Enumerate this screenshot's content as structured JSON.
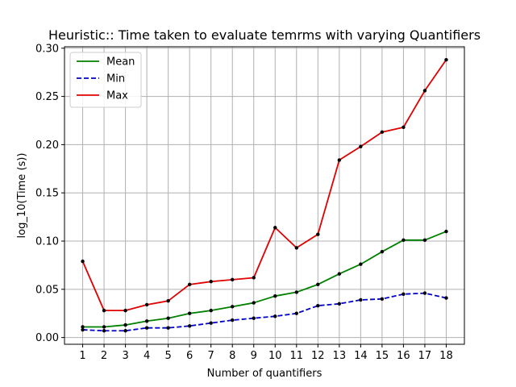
{
  "chart_data": {
    "type": "line",
    "title": "Heuristic:: Time taken to evaluate temrms with varying Quantifiers",
    "xlabel": "Number of quantifiers",
    "ylabel": "log_10(Time (s))",
    "x": [
      1,
      2,
      3,
      4,
      5,
      6,
      7,
      8,
      9,
      10,
      11,
      12,
      13,
      14,
      15,
      16,
      17,
      18
    ],
    "xlim": [
      0.15,
      18.85
    ],
    "ylim": [
      -0.007,
      0.3015
    ],
    "yticks": [
      0.0,
      0.05,
      0.1,
      0.15,
      0.2,
      0.25,
      0.3
    ],
    "ytick_labels": [
      "0.00",
      "0.05",
      "0.10",
      "0.15",
      "0.20",
      "0.25",
      "0.30"
    ],
    "xtick_labels": [
      "1",
      "2",
      "3",
      "4",
      "5",
      "6",
      "7",
      "8",
      "9",
      "10",
      "11",
      "12",
      "13",
      "14",
      "15",
      "16",
      "17",
      "18"
    ],
    "grid": true,
    "legend_position": "top-left",
    "series": [
      {
        "name": "Mean",
        "color": "#008000",
        "style": "solid",
        "values": [
          0.011,
          0.011,
          0.013,
          0.017,
          0.02,
          0.025,
          0.028,
          0.032,
          0.036,
          0.043,
          0.047,
          0.055,
          0.066,
          0.076,
          0.089,
          0.101,
          0.101,
          0.11
        ]
      },
      {
        "name": "Min",
        "color": "#0000cc",
        "style": "dashed",
        "values": [
          0.008,
          0.007,
          0.007,
          0.01,
          0.01,
          0.012,
          0.015,
          0.018,
          0.02,
          0.022,
          0.025,
          0.033,
          0.035,
          0.039,
          0.04,
          0.045,
          0.046,
          0.041
        ]
      },
      {
        "name": "Max",
        "color": "#e00000",
        "style": "solid",
        "values": [
          0.079,
          0.028,
          0.028,
          0.034,
          0.038,
          0.055,
          0.058,
          0.06,
          0.062,
          0.114,
          0.093,
          0.107,
          0.184,
          0.198,
          0.213,
          0.218,
          0.256,
          0.288
        ]
      }
    ],
    "marker_color": "#000000"
  }
}
